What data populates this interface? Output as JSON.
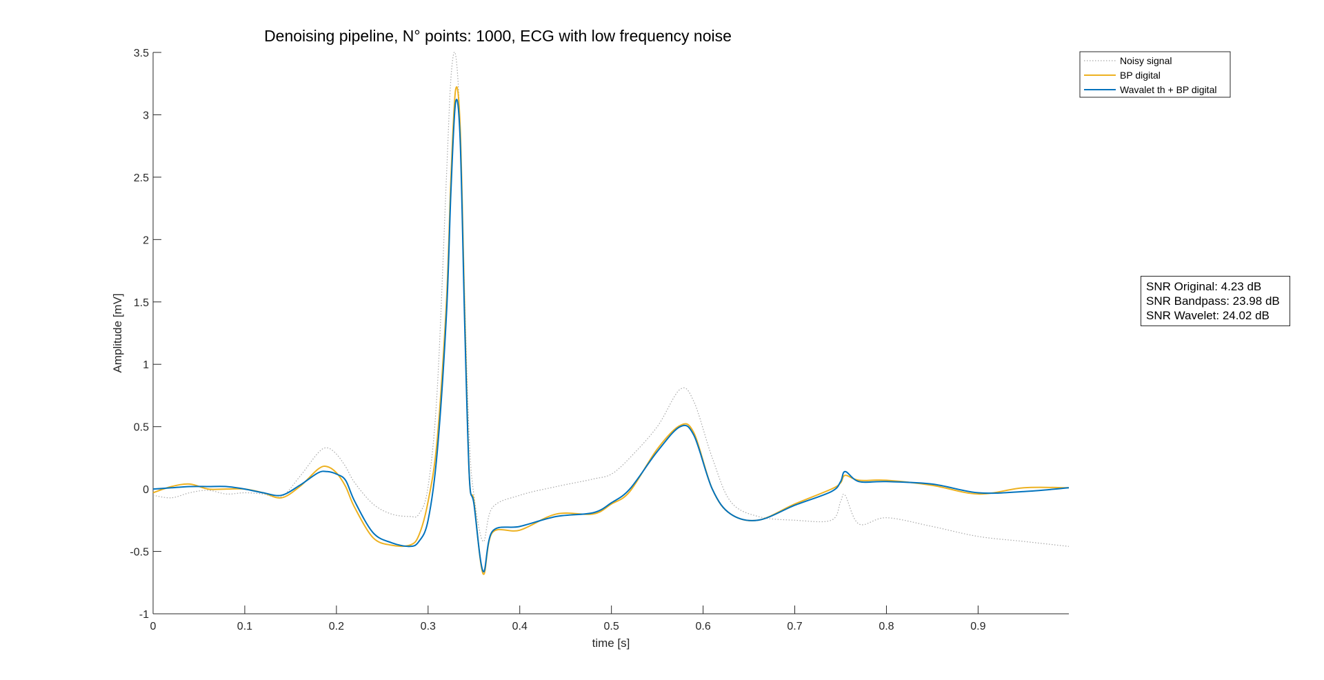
{
  "chart_data": {
    "type": "line",
    "title": "Denoising pipeline, N° points: 1000, ECG with low frequency noise",
    "xlabel": "time [s]",
    "ylabel": "Amplitude [mV]",
    "xlim": [
      0,
      0.999
    ],
    "ylim": [
      -1,
      3.5
    ],
    "xticks": [
      0,
      0.1,
      0.2,
      0.3,
      0.4,
      0.5,
      0.6,
      0.7,
      0.8,
      0.9
    ],
    "xtick_labels": [
      "0",
      "0.1",
      "0.2",
      "0.3",
      "0.4",
      "0.5",
      "0.6",
      "0.7",
      "0.8",
      "0.9"
    ],
    "yticks": [
      -1,
      -0.5,
      0,
      0.5,
      1,
      1.5,
      2,
      2.5,
      3,
      3.5
    ],
    "ytick_labels": [
      "-1",
      "-0.5",
      "0",
      "0.5",
      "1",
      "1.5",
      "2",
      "2.5",
      "3",
      "3.5"
    ],
    "grid": false,
    "legend_position": "top-right",
    "x": [
      0,
      0.02,
      0.04,
      0.06,
      0.08,
      0.1,
      0.12,
      0.14,
      0.16,
      0.18,
      0.19,
      0.2,
      0.21,
      0.22,
      0.24,
      0.26,
      0.28,
      0.29,
      0.3,
      0.31,
      0.32,
      0.325,
      0.33,
      0.335,
      0.34,
      0.345,
      0.35,
      0.36,
      0.37,
      0.4,
      0.44,
      0.48,
      0.5,
      0.52,
      0.55,
      0.575,
      0.59,
      0.61,
      0.63,
      0.66,
      0.7,
      0.74,
      0.75,
      0.755,
      0.77,
      0.8,
      0.85,
      0.9,
      0.95,
      0.999
    ],
    "series": [
      {
        "name": "Noisy signal",
        "color": "#a6a6a6",
        "style": "dotted",
        "values": [
          -0.05,
          -0.07,
          -0.03,
          -0.01,
          -0.04,
          -0.03,
          -0.04,
          -0.06,
          0.1,
          0.29,
          0.33,
          0.28,
          0.18,
          0.05,
          -0.12,
          -0.2,
          -0.22,
          -0.2,
          0.02,
          0.8,
          2.5,
          3.3,
          3.48,
          2.9,
          1.5,
          0.4,
          -0.05,
          -0.42,
          -0.15,
          -0.05,
          0.02,
          0.08,
          0.12,
          0.25,
          0.5,
          0.8,
          0.7,
          0.25,
          -0.1,
          -0.22,
          -0.25,
          -0.25,
          -0.1,
          -0.05,
          -0.28,
          -0.23,
          -0.3,
          -0.38,
          -0.42,
          -0.46
        ]
      },
      {
        "name": "BP digital",
        "color": "#edb120",
        "style": "solid",
        "values": [
          -0.03,
          0.02,
          0.04,
          0.0,
          0.0,
          0.0,
          -0.03,
          -0.07,
          0.02,
          0.16,
          0.18,
          0.13,
          0.02,
          -0.15,
          -0.39,
          -0.45,
          -0.45,
          -0.37,
          -0.1,
          0.4,
          1.5,
          2.5,
          3.2,
          2.9,
          1.4,
          0.1,
          -0.1,
          -0.68,
          -0.35,
          -0.33,
          -0.2,
          -0.2,
          -0.12,
          -0.02,
          0.32,
          0.51,
          0.45,
          0.0,
          -0.2,
          -0.25,
          -0.12,
          0.0,
          0.05,
          0.11,
          0.07,
          0.07,
          0.03,
          -0.04,
          0.01,
          0.01
        ]
      },
      {
        "name": "Wavalet th + BP digital",
        "color": "#0072bd",
        "style": "solid",
        "values": [
          0.0,
          0.01,
          0.02,
          0.02,
          0.02,
          0.0,
          -0.03,
          -0.05,
          0.03,
          0.13,
          0.14,
          0.12,
          0.07,
          -0.1,
          -0.35,
          -0.43,
          -0.46,
          -0.42,
          -0.25,
          0.3,
          1.4,
          2.4,
          3.1,
          2.8,
          1.3,
          0.1,
          -0.12,
          -0.66,
          -0.34,
          -0.3,
          -0.22,
          -0.19,
          -0.11,
          0.0,
          0.3,
          0.5,
          0.43,
          0.0,
          -0.2,
          -0.25,
          -0.13,
          -0.02,
          0.06,
          0.14,
          0.06,
          0.06,
          0.04,
          -0.03,
          -0.02,
          0.01
        ]
      }
    ],
    "annotation": {
      "lines": [
        "SNR Original: 4.23 dB",
        "SNR Bandpass: 23.98 dB",
        "SNR Wavelet: 24.02 dB"
      ]
    }
  }
}
